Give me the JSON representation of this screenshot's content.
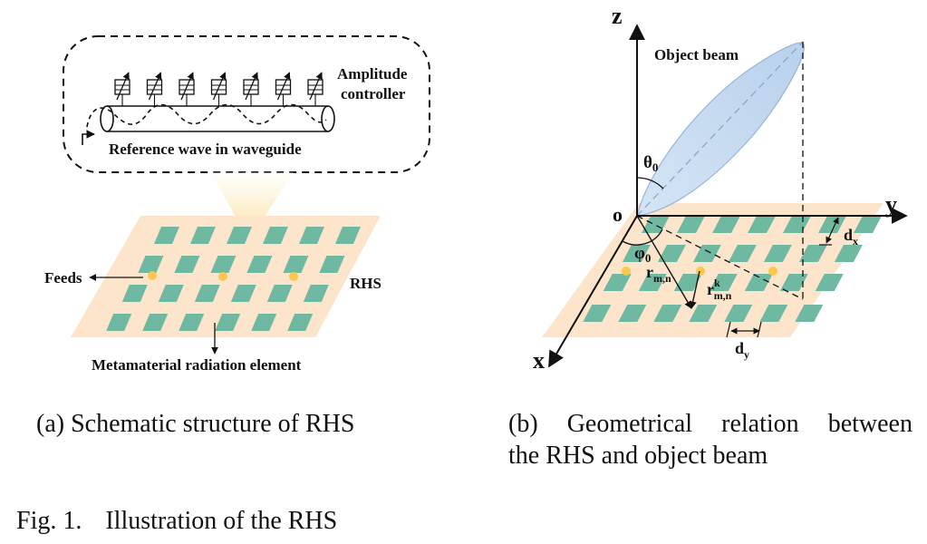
{
  "panel_a": {
    "amplitude_label_line1": "Amplitude",
    "amplitude_label_line2": "controller",
    "waveguide_label": "Reference wave in waveguide",
    "feeds_label": "Feeds",
    "rhs_label": "RHS",
    "element_label": "Metamaterial radiation element"
  },
  "panel_b": {
    "z_label": "z",
    "y_label": "y",
    "x_label": "x",
    "origin_label": "o",
    "beam_label": "Object beam",
    "theta_label": "θ",
    "theta_sub": "0",
    "phi_label": "φ",
    "phi_sub": "0",
    "r_label": "r",
    "r_sub": "m,n",
    "rk_label": "r",
    "rk_sup": "k",
    "rk_sub": "m,n",
    "dx_label": "d",
    "dx_sub": "x",
    "dy_label": "d",
    "dy_sub": "y"
  },
  "captions": {
    "a": "(a) Schematic structure of RHS",
    "b_line1": [
      "(b)",
      "Geometrical",
      "relation",
      "between"
    ],
    "b_line2": "the RHS and object beam",
    "fig_num": "Fig. 1.",
    "fig_text": "Illustration of the RHS"
  },
  "colors": {
    "element_fill": "#6fb9a3",
    "substrate_fill": "#fde5cc",
    "feed_fill": "#f8c850",
    "beam_fill": "#c4d9ef",
    "beam_stroke": "#9bb8db",
    "cone_fill": "#fbd98a"
  }
}
